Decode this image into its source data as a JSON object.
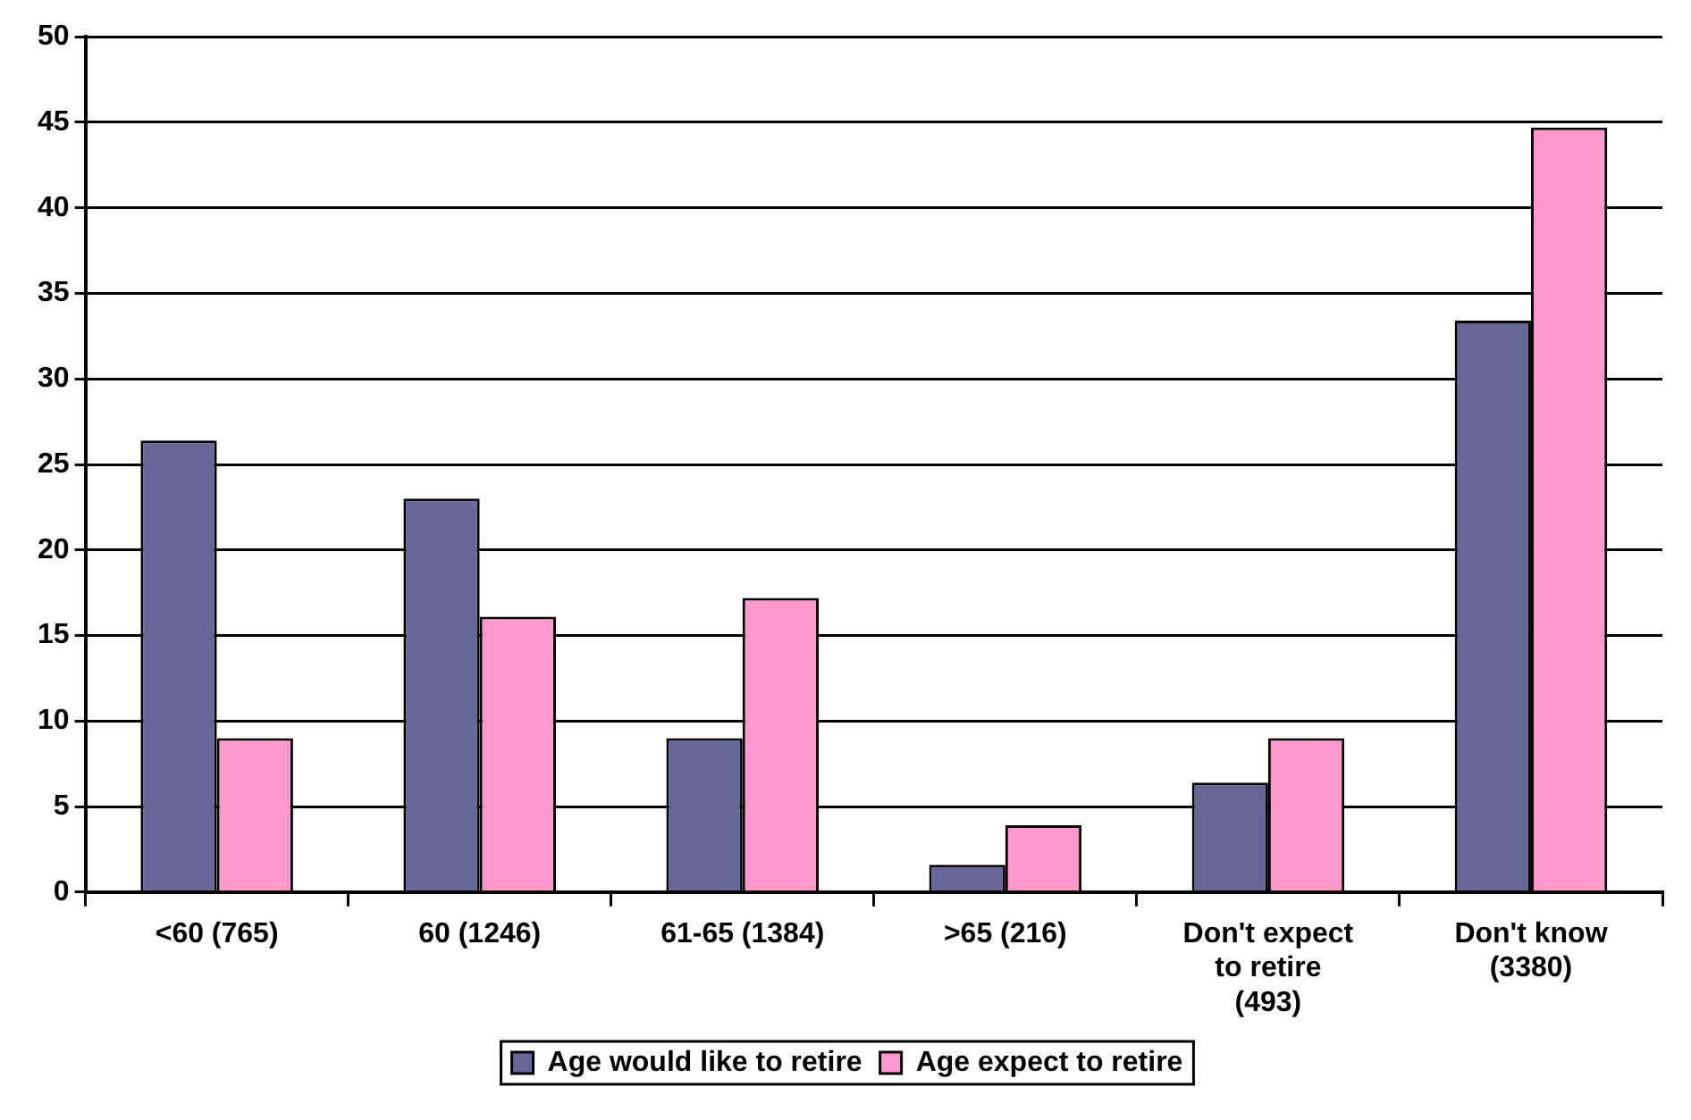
{
  "chart_data": {
    "type": "bar",
    "categories": [
      "<60 (765)",
      "60 (1246)",
      "61-65 (1384)",
      ">65 (216)",
      "Don't expect to retire (493)",
      "Don't know (3380)"
    ],
    "series": [
      {
        "name": "Age would like to retire",
        "color": "#666699",
        "values": [
          26.4,
          23,
          9,
          1.6,
          6.4,
          33.4
        ]
      },
      {
        "name": "Age expect to retire",
        "color": "#ff99cc",
        "values": [
          9,
          16.1,
          17.2,
          3.9,
          9,
          44.7
        ]
      }
    ],
    "ylim": [
      0,
      50
    ],
    "yticks": [
      0,
      5,
      10,
      15,
      20,
      25,
      30,
      35,
      40,
      45,
      50
    ],
    "grid": "y",
    "legend": "bottom"
  }
}
